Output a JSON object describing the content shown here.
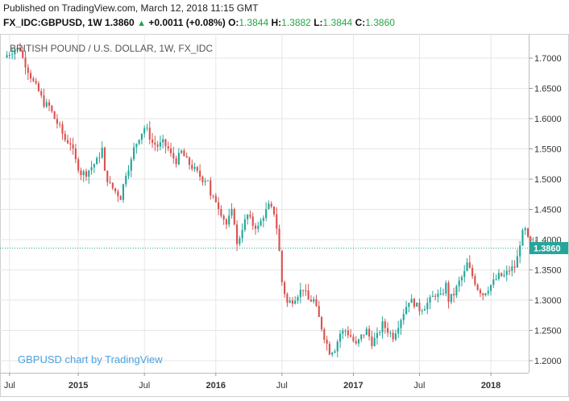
{
  "header": {
    "published": "Published on TradingView.com, March 12, 2018 11:15 GMT",
    "symbol": "FX_IDC:GBPUSD, 1W",
    "last": "1.3860",
    "change_arrow": "▲",
    "change": "+0.0011 (+0.08%)",
    "open_label": "O:",
    "open": "1.3844",
    "high_label": "H:",
    "high": "1.3882",
    "low_label": "L:",
    "low": "1.3844",
    "close_label": "C:",
    "close": "1.3860"
  },
  "colors": {
    "up": "#26a69a",
    "down": "#d9534f",
    "price_line": "#26a69a",
    "grid": "#e6e6e6",
    "watermark": "#4aa3df",
    "badge": "#26a69a"
  },
  "chart_data": {
    "type": "candlestick",
    "title": "BRITISH POUND / U.S. DOLLAR, 1W, FX_IDC",
    "watermark": "GBPUSD chart by TradingView",
    "current_price_label": "1.3860",
    "current_price": 1.386,
    "ylim": [
      1.18,
      1.74
    ],
    "y_ticks": [
      "1.2000",
      "1.2500",
      "1.3000",
      "1.3500",
      "1.4000",
      "1.4500",
      "1.5000",
      "1.5500",
      "1.6000",
      "1.6500",
      "1.7000"
    ],
    "y_tick_values": [
      1.2,
      1.25,
      1.3,
      1.35,
      1.4,
      1.45,
      1.5,
      1.55,
      1.6,
      1.65,
      1.7
    ],
    "x_ticks": [
      {
        "label": "Jul",
        "week": 1
      },
      {
        "label": "2015",
        "week": 27
      },
      {
        "label": "Jul",
        "week": 52
      },
      {
        "label": "2016",
        "week": 79
      },
      {
        "label": "Jul",
        "week": 104
      },
      {
        "label": "2017",
        "week": 131
      },
      {
        "label": "Jul",
        "week": 156
      },
      {
        "label": "2018",
        "week": 183
      }
    ],
    "weeks_range": [
      -2,
      197
    ],
    "close_path": [
      [
        0,
        1.705
      ],
      [
        3,
        1.715
      ],
      [
        5,
        1.715
      ],
      [
        6,
        1.7
      ],
      [
        8,
        1.68
      ],
      [
        10,
        1.66
      ],
      [
        12,
        1.645
      ],
      [
        14,
        1.625
      ],
      [
        16,
        1.62
      ],
      [
        18,
        1.6
      ],
      [
        20,
        1.585
      ],
      [
        22,
        1.565
      ],
      [
        24,
        1.56
      ],
      [
        26,
        1.53
      ],
      [
        28,
        1.51
      ],
      [
        30,
        1.51
      ],
      [
        32,
        1.52
      ],
      [
        34,
        1.53
      ],
      [
        36,
        1.55
      ],
      [
        37,
        1.51
      ],
      [
        39,
        1.49
      ],
      [
        41,
        1.48
      ],
      [
        43,
        1.47
      ],
      [
        45,
        1.51
      ],
      [
        47,
        1.53
      ],
      [
        48,
        1.55
      ],
      [
        50,
        1.57
      ],
      [
        52,
        1.585
      ],
      [
        53,
        1.58
      ],
      [
        55,
        1.56
      ],
      [
        57,
        1.555
      ],
      [
        59,
        1.56
      ],
      [
        61,
        1.55
      ],
      [
        62,
        1.54
      ],
      [
        64,
        1.53
      ],
      [
        66,
        1.545
      ],
      [
        68,
        1.53
      ],
      [
        70,
        1.52
      ],
      [
        72,
        1.51
      ],
      [
        74,
        1.5
      ],
      [
        76,
        1.5
      ],
      [
        77,
        1.47
      ],
      [
        79,
        1.465
      ],
      [
        81,
        1.445
      ],
      [
        83,
        1.425
      ],
      [
        85,
        1.445
      ],
      [
        86,
        1.43
      ],
      [
        87,
        1.39
      ],
      [
        89,
        1.42
      ],
      [
        91,
        1.44
      ],
      [
        93,
        1.425
      ],
      [
        95,
        1.42
      ],
      [
        97,
        1.44
      ],
      [
        99,
        1.455
      ],
      [
        101,
        1.445
      ],
      [
        102,
        1.42
      ],
      [
        103,
        1.38
      ],
      [
        104,
        1.33
      ],
      [
        106,
        1.295
      ],
      [
        108,
        1.3
      ],
      [
        110,
        1.31
      ],
      [
        112,
        1.32
      ],
      [
        114,
        1.3
      ],
      [
        116,
        1.3
      ],
      [
        118,
        1.27
      ],
      [
        120,
        1.24
      ],
      [
        122,
        1.215
      ],
      [
        124,
        1.22
      ],
      [
        126,
        1.245
      ],
      [
        128,
        1.25
      ],
      [
        130,
        1.24
      ],
      [
        132,
        1.225
      ],
      [
        134,
        1.24
      ],
      [
        136,
        1.25
      ],
      [
        138,
        1.23
      ],
      [
        140,
        1.24
      ],
      [
        142,
        1.26
      ],
      [
        144,
        1.25
      ],
      [
        146,
        1.24
      ],
      [
        148,
        1.26
      ],
      [
        150,
        1.28
      ],
      [
        152,
        1.3
      ],
      [
        154,
        1.295
      ],
      [
        156,
        1.285
      ],
      [
        158,
        1.29
      ],
      [
        160,
        1.3
      ],
      [
        162,
        1.31
      ],
      [
        164,
        1.305
      ],
      [
        166,
        1.325
      ],
      [
        167,
        1.3
      ],
      [
        169,
        1.31
      ],
      [
        171,
        1.33
      ],
      [
        173,
        1.345
      ],
      [
        174,
        1.36
      ],
      [
        176,
        1.34
      ],
      [
        178,
        1.32
      ],
      [
        180,
        1.31
      ],
      [
        182,
        1.32
      ],
      [
        184,
        1.33
      ],
      [
        186,
        1.34
      ],
      [
        188,
        1.34
      ],
      [
        190,
        1.35
      ],
      [
        192,
        1.355
      ],
      [
        193,
        1.37
      ],
      [
        194,
        1.395
      ],
      [
        195,
        1.41
      ],
      [
        196,
        1.415
      ],
      [
        197,
        1.4
      ],
      [
        198,
        1.385
      ],
      [
        199,
        1.39
      ],
      [
        200,
        1.386
      ]
    ]
  }
}
